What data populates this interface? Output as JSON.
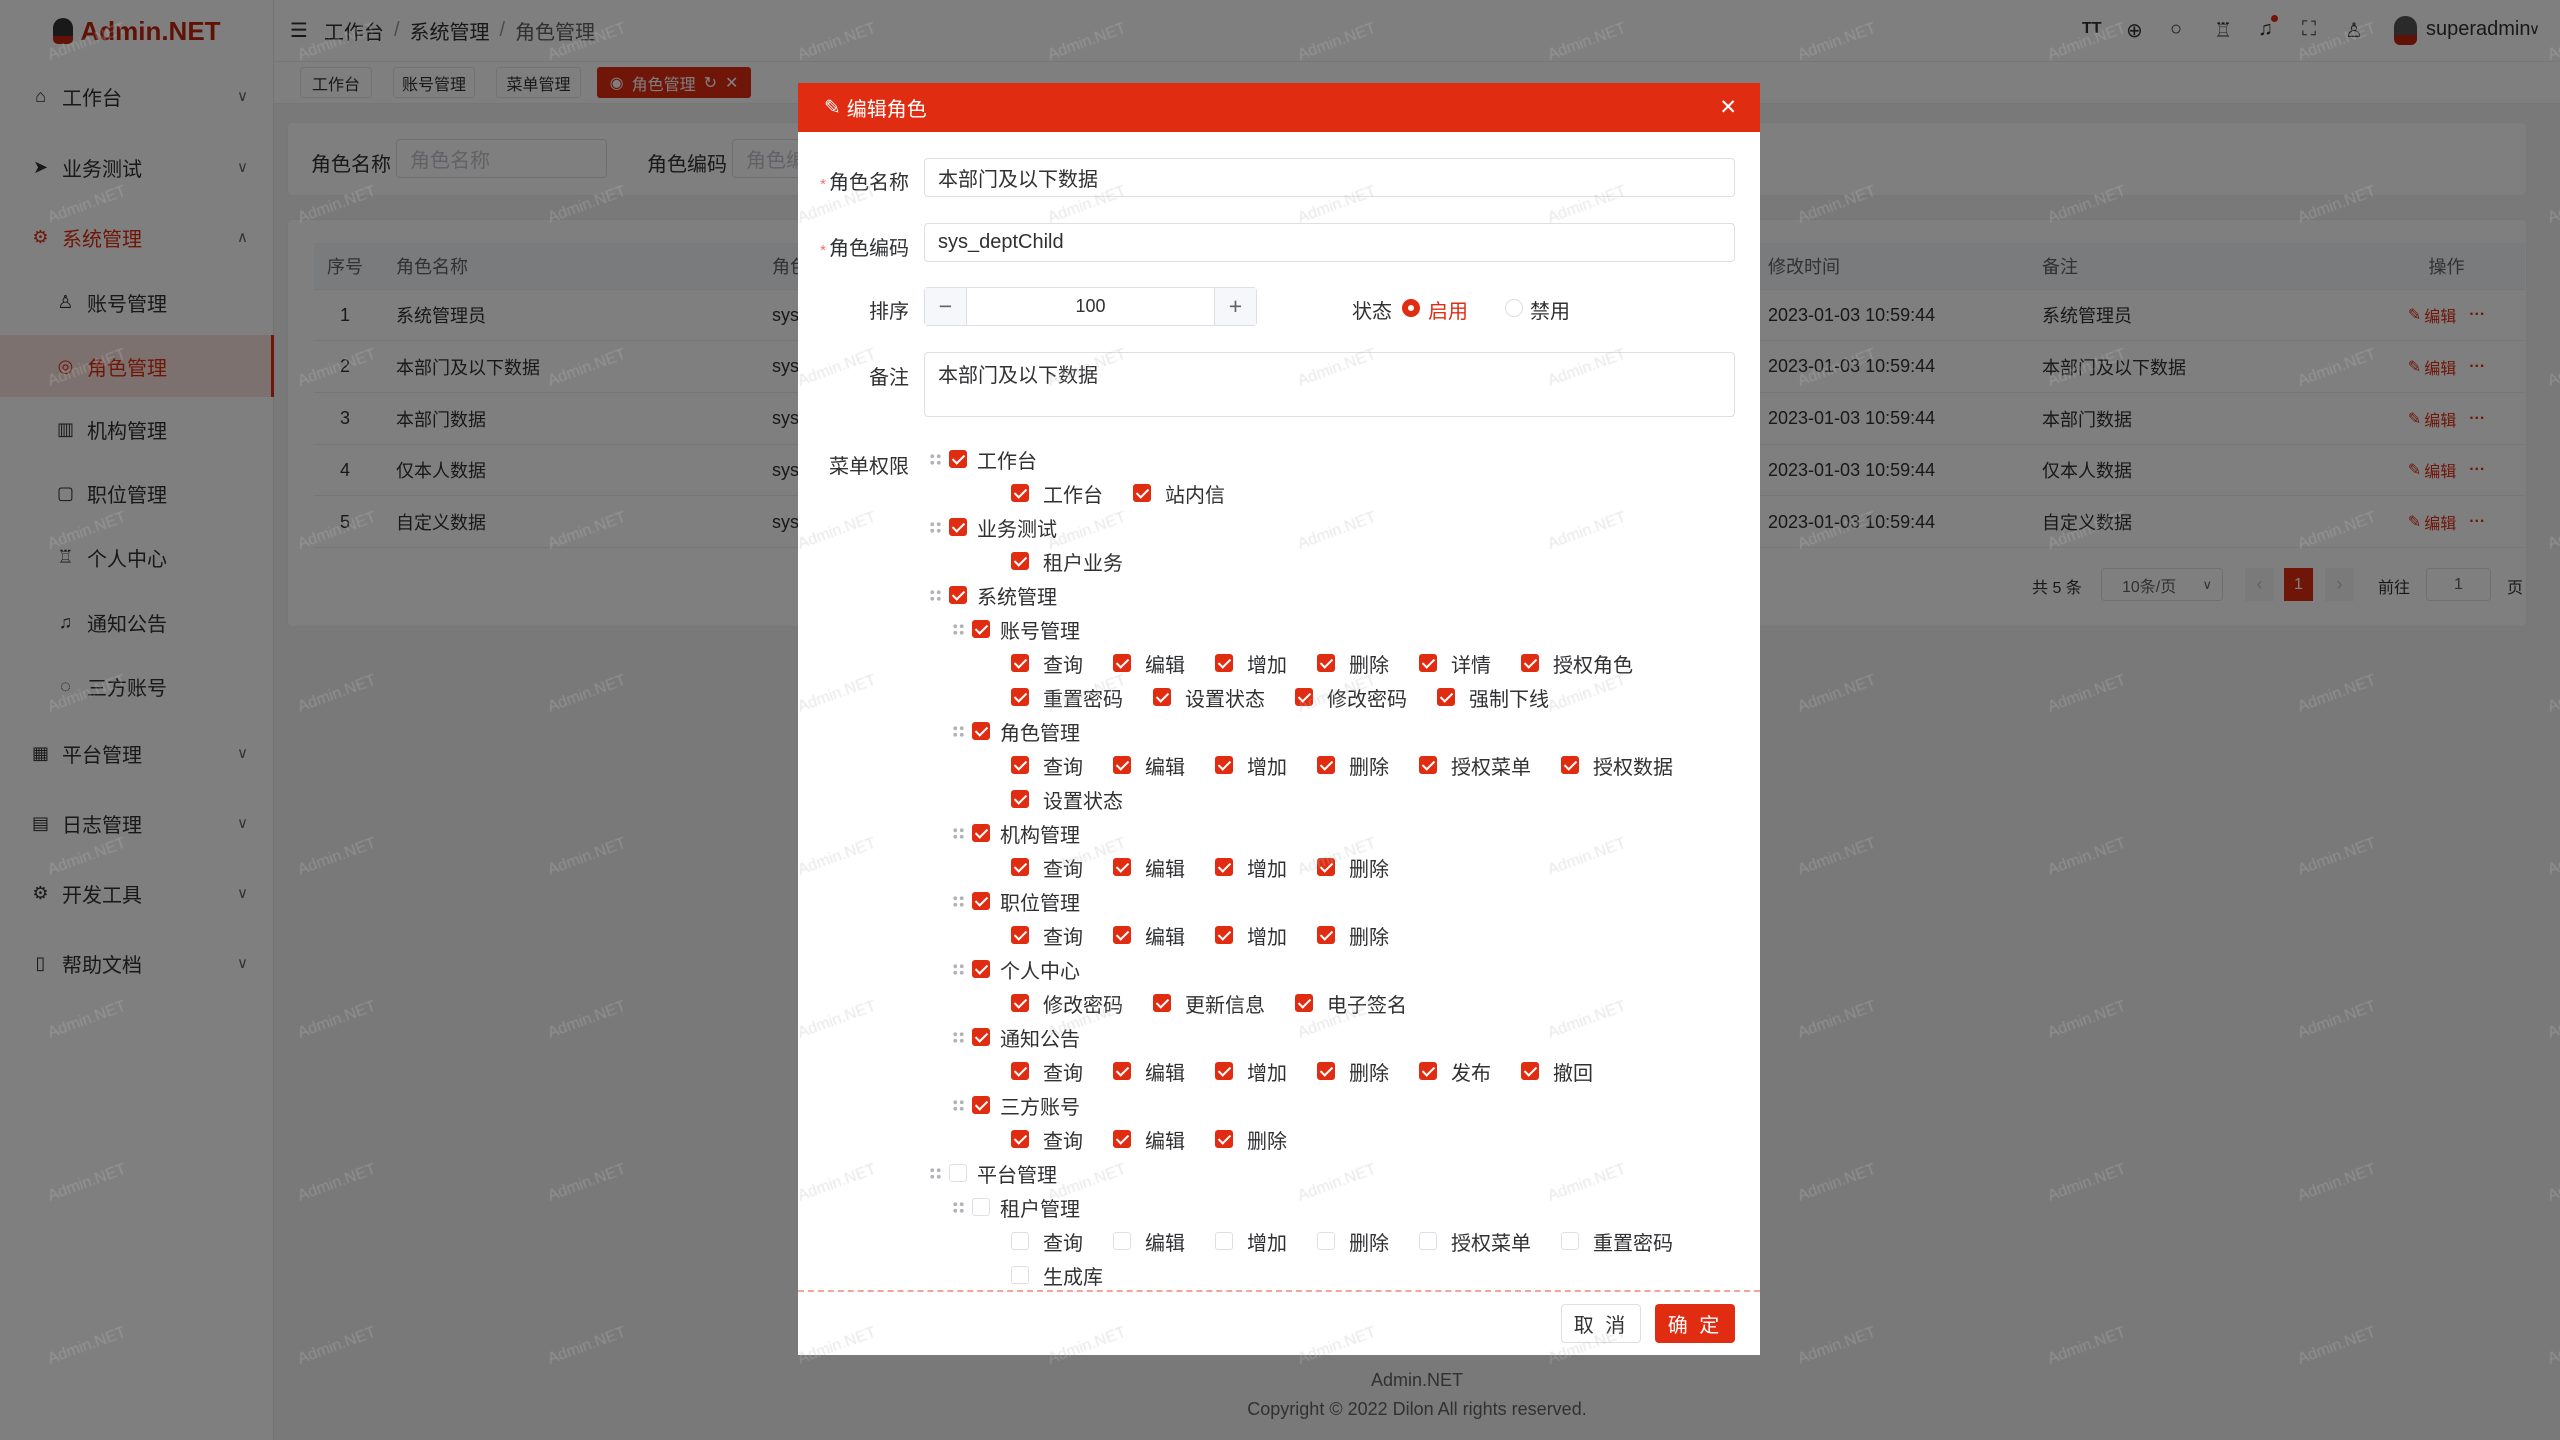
{
  "brand": {
    "name": "Admin.NET",
    "accent": "#e02d12"
  },
  "watermark": "Admin.NET",
  "sidebar": {
    "items": [
      {
        "label": "工作台",
        "icon": "home-icon",
        "type": "top",
        "expanded": false
      },
      {
        "label": "业务测试",
        "icon": "send-icon",
        "type": "top",
        "expanded": false
      },
      {
        "label": "系统管理",
        "icon": "gear-icon",
        "type": "top",
        "expanded": true,
        "open": true
      },
      {
        "label": "账号管理",
        "icon": "user-icon",
        "type": "sub"
      },
      {
        "label": "角色管理",
        "icon": "role-icon",
        "type": "sub",
        "active": true
      },
      {
        "label": "机构管理",
        "icon": "org-icon",
        "type": "sub"
      },
      {
        "label": "职位管理",
        "icon": "position-icon",
        "type": "sub"
      },
      {
        "label": "个人中心",
        "icon": "profile-icon",
        "type": "sub"
      },
      {
        "label": "通知公告",
        "icon": "bell-icon",
        "type": "sub"
      },
      {
        "label": "三方账号",
        "icon": "chat-icon",
        "type": "sub"
      },
      {
        "label": "平台管理",
        "icon": "grid-icon",
        "type": "top",
        "expanded": false
      },
      {
        "label": "日志管理",
        "icon": "log-icon",
        "type": "top",
        "expanded": false
      },
      {
        "label": "开发工具",
        "icon": "tool-icon",
        "type": "top",
        "expanded": false
      },
      {
        "label": "帮助文档",
        "icon": "doc-icon",
        "type": "top",
        "expanded": false
      }
    ]
  },
  "header": {
    "breadcrumb": [
      "工作台",
      "系统管理",
      "角色管理"
    ],
    "username": "superadmin",
    "icons": [
      "font-size-icon",
      "language-icon",
      "search-icon",
      "skin-icon",
      "bell-icon",
      "fullscreen-icon",
      "user-icon"
    ]
  },
  "tabs": [
    {
      "label": "工作台"
    },
    {
      "label": "账号管理"
    },
    {
      "label": "菜单管理"
    },
    {
      "label": "角色管理",
      "active": true
    }
  ],
  "search": {
    "name_label": "角色名称",
    "name_placeholder": "角色名称",
    "code_label": "角色编码",
    "code_placeholder": "角色编码"
  },
  "table": {
    "headers": {
      "index": "序号",
      "name": "角色名称",
      "code": "角色编码",
      "updated": "修改时间",
      "remark": "备注",
      "actions": "操作"
    },
    "edit_label": "编辑",
    "more_label": "···",
    "rows": [
      {
        "index": "1",
        "name": "系统管理员",
        "code": "sys_",
        "updated": "2023-01-03 10:59:44",
        "remark": "系统管理员"
      },
      {
        "index": "2",
        "name": "本部门及以下数据",
        "code": "sys_",
        "updated": "2023-01-03 10:59:44",
        "remark": "本部门及以下数据"
      },
      {
        "index": "3",
        "name": "本部门数据",
        "code": "sys_",
        "updated": "2023-01-03 10:59:44",
        "remark": "本部门数据"
      },
      {
        "index": "4",
        "name": "仅本人数据",
        "code": "sys_",
        "updated": "2023-01-03 10:59:44",
        "remark": "仅本人数据"
      },
      {
        "index": "5",
        "name": "自定义数据",
        "code": "sys_",
        "updated": "2023-01-03 10:59:44",
        "remark": "自定义数据"
      }
    ]
  },
  "pagination": {
    "total": "共 5 条",
    "page_size": "10条/页",
    "current": "1",
    "goto_label": "前往",
    "goto_value": "1",
    "page_suffix": "页"
  },
  "footer": {
    "name": "Admin.NET",
    "copyright": "Copyright © 2022 Dilon All rights reserved."
  },
  "dialog": {
    "title": "编辑角色",
    "name_label": "角色名称",
    "name_value": "本部门及以下数据",
    "code_label": "角色编码",
    "code_value": "sys_deptChild",
    "sort_label": "排序",
    "sort_value": "100",
    "status_label": "状态",
    "status_options": [
      {
        "label": "启用",
        "selected": true
      },
      {
        "label": "禁用",
        "selected": false
      }
    ],
    "remark_label": "备注",
    "remark_value": "本部门及以下数据",
    "menu_label": "菜单权限",
    "cancel_label": "取 消",
    "confirm_label": "确 定",
    "tree": [
      {
        "label": "工作台",
        "checked": true,
        "level": 0,
        "leaves": [
          {
            "label": "工作台",
            "checked": true
          },
          {
            "label": "站内信",
            "checked": true
          }
        ]
      },
      {
        "label": "业务测试",
        "checked": true,
        "level": 0,
        "leaves": [
          {
            "label": "租户业务",
            "checked": true
          }
        ]
      },
      {
        "label": "系统管理",
        "checked": true,
        "level": 0
      },
      {
        "label": "账号管理",
        "checked": true,
        "level": 1,
        "leaves": [
          {
            "label": "查询",
            "checked": true
          },
          {
            "label": "编辑",
            "checked": true
          },
          {
            "label": "增加",
            "checked": true
          },
          {
            "label": "删除",
            "checked": true
          },
          {
            "label": "详情",
            "checked": true
          },
          {
            "label": "授权角色",
            "checked": true
          },
          {
            "label": "重置密码",
            "checked": true
          },
          {
            "label": "设置状态",
            "checked": true
          },
          {
            "label": "修改密码",
            "checked": true
          },
          {
            "label": "强制下线",
            "checked": true
          }
        ]
      },
      {
        "label": "角色管理",
        "checked": true,
        "level": 1,
        "leaves": [
          {
            "label": "查询",
            "checked": true
          },
          {
            "label": "编辑",
            "checked": true
          },
          {
            "label": "增加",
            "checked": true
          },
          {
            "label": "删除",
            "checked": true
          },
          {
            "label": "授权菜单",
            "checked": true
          },
          {
            "label": "授权数据",
            "checked": true
          },
          {
            "label": "设置状态",
            "checked": true
          }
        ]
      },
      {
        "label": "机构管理",
        "checked": true,
        "level": 1,
        "leaves": [
          {
            "label": "查询",
            "checked": true
          },
          {
            "label": "编辑",
            "checked": true
          },
          {
            "label": "增加",
            "checked": true
          },
          {
            "label": "删除",
            "checked": true
          }
        ]
      },
      {
        "label": "职位管理",
        "checked": true,
        "level": 1,
        "leaves": [
          {
            "label": "查询",
            "checked": true
          },
          {
            "label": "编辑",
            "checked": true
          },
          {
            "label": "增加",
            "checked": true
          },
          {
            "label": "删除",
            "checked": true
          }
        ]
      },
      {
        "label": "个人中心",
        "checked": true,
        "level": 1,
        "leaves": [
          {
            "label": "修改密码",
            "checked": true
          },
          {
            "label": "更新信息",
            "checked": true
          },
          {
            "label": "电子签名",
            "checked": true
          }
        ]
      },
      {
        "label": "通知公告",
        "checked": true,
        "level": 1,
        "leaves": [
          {
            "label": "查询",
            "checked": true
          },
          {
            "label": "编辑",
            "checked": true
          },
          {
            "label": "增加",
            "checked": true
          },
          {
            "label": "删除",
            "checked": true
          },
          {
            "label": "发布",
            "checked": true
          },
          {
            "label": "撤回",
            "checked": true
          }
        ]
      },
      {
        "label": "三方账号",
        "checked": true,
        "level": 1,
        "leaves": [
          {
            "label": "查询",
            "checked": true
          },
          {
            "label": "编辑",
            "checked": true
          },
          {
            "label": "删除",
            "checked": true
          }
        ]
      },
      {
        "label": "平台管理",
        "checked": false,
        "level": 0
      },
      {
        "label": "租户管理",
        "checked": false,
        "level": 1,
        "leaves": [
          {
            "label": "查询",
            "checked": false
          },
          {
            "label": "编辑",
            "checked": false
          },
          {
            "label": "增加",
            "checked": false
          },
          {
            "label": "删除",
            "checked": false
          },
          {
            "label": "授权菜单",
            "checked": false
          },
          {
            "label": "重置密码",
            "checked": false
          },
          {
            "label": "生成库",
            "checked": false
          }
        ]
      }
    ]
  }
}
